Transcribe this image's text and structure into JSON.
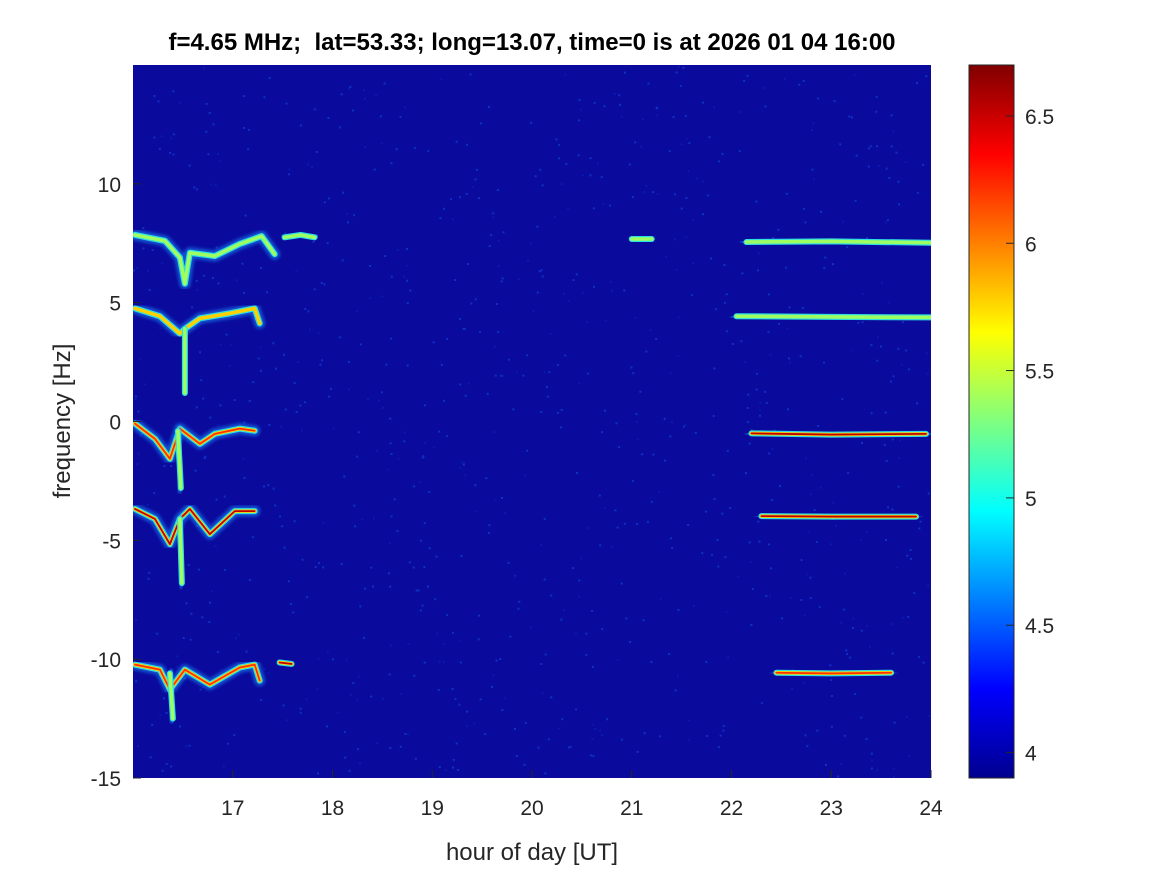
{
  "chart_data": {
    "type": "heatmap",
    "title": "f=4.65 MHz;  lat=53.33; long=13.07, time=0 is at 2026 01 04 16:00",
    "xlabel": "hour of day [UT]",
    "ylabel": "frequency [Hz]",
    "xlim": [
      16,
      24
    ],
    "ylim": [
      -15,
      15
    ],
    "xticks": [
      "17",
      "18",
      "19",
      "20",
      "21",
      "22",
      "23",
      "24"
    ],
    "xtick_values": [
      17,
      18,
      19,
      20,
      21,
      22,
      23,
      24
    ],
    "yticks": [
      "-15",
      "-10",
      "-5",
      "0",
      "5",
      "10"
    ],
    "ytick_values": [
      -15,
      -10,
      -5,
      0,
      5,
      10
    ],
    "colorbar": {
      "clim": [
        3.9,
        6.7
      ],
      "ticks": [
        "4",
        "4.5",
        "5",
        "5.5",
        "6",
        "6.5"
      ],
      "tick_values": [
        4,
        4.5,
        5,
        5.5,
        6,
        6.5
      ],
      "colormap": "jet"
    },
    "background_color": "#0a0a9c",
    "traces": [
      {
        "name": "trace-7hz-early",
        "points": [
          [
            16.02,
            7.85
          ],
          [
            16.32,
            7.6
          ],
          [
            16.47,
            6.9
          ],
          [
            16.52,
            5.8
          ],
          [
            16.57,
            7.1
          ],
          [
            16.82,
            6.96
          ],
          [
            17.07,
            7.47
          ],
          [
            17.29,
            7.8
          ],
          [
            17.42,
            7.04
          ]
        ],
        "intensity": 5.6
      },
      {
        "name": "trace-7hz-short",
        "points": [
          [
            17.52,
            7.75
          ],
          [
            17.68,
            7.85
          ],
          [
            17.82,
            7.75
          ]
        ],
        "intensity": 5.8
      },
      {
        "name": "trace-4hz-early",
        "points": [
          [
            16.02,
            4.76
          ],
          [
            16.27,
            4.43
          ],
          [
            16.47,
            3.7
          ],
          [
            16.52,
            3.9
          ],
          [
            16.67,
            4.34
          ],
          [
            16.97,
            4.55
          ],
          [
            17.22,
            4.76
          ],
          [
            17.27,
            4.13
          ]
        ],
        "intensity": 5.9
      },
      {
        "name": "trace-4hz-dip",
        "points": [
          [
            16.52,
            3.9
          ],
          [
            16.52,
            1.2
          ]
        ],
        "intensity": 4.8
      },
      {
        "name": "trace-0hz-early",
        "points": [
          [
            16.02,
            -0.09
          ],
          [
            16.22,
            -0.73
          ],
          [
            16.37,
            -1.57
          ],
          [
            16.47,
            -0.3
          ],
          [
            16.67,
            -0.94
          ],
          [
            16.82,
            -0.52
          ],
          [
            17.07,
            -0.3
          ],
          [
            17.22,
            -0.39
          ]
        ],
        "intensity": 6.4
      },
      {
        "name": "trace-0hz-dip",
        "points": [
          [
            16.45,
            -0.4
          ],
          [
            16.48,
            -2.8
          ]
        ],
        "intensity": 5.0
      },
      {
        "name": "trace-m4hz-early",
        "points": [
          [
            16.02,
            -3.68
          ],
          [
            16.22,
            -4.1
          ],
          [
            16.37,
            -5.16
          ],
          [
            16.47,
            -4.1
          ],
          [
            16.57,
            -3.68
          ],
          [
            16.77,
            -4.74
          ],
          [
            17.02,
            -3.77
          ],
          [
            17.22,
            -3.77
          ]
        ],
        "intensity": 6.6
      },
      {
        "name": "trace-m4hz-dip",
        "points": [
          [
            16.47,
            -4.1
          ],
          [
            16.49,
            -6.8
          ]
        ],
        "intensity": 5.0
      },
      {
        "name": "trace-m10hz-early",
        "points": [
          [
            16.02,
            -10.23
          ],
          [
            16.27,
            -10.44
          ],
          [
            16.37,
            -11.28
          ],
          [
            16.52,
            -10.44
          ],
          [
            16.77,
            -11.07
          ],
          [
            17.07,
            -10.35
          ],
          [
            17.22,
            -10.23
          ],
          [
            17.27,
            -10.9
          ]
        ],
        "intensity": 6.2
      },
      {
        "name": "trace-m10hz-dip",
        "points": [
          [
            16.37,
            -10.6
          ],
          [
            16.4,
            -12.5
          ]
        ],
        "intensity": 5.2
      },
      {
        "name": "trace-m10hz-short",
        "points": [
          [
            17.47,
            -10.14
          ],
          [
            17.59,
            -10.2
          ]
        ],
        "intensity": 6.5
      },
      {
        "name": "trace-7hz-21h",
        "points": [
          [
            21.0,
            7.68
          ],
          [
            21.2,
            7.68
          ]
        ],
        "intensity": 5.0
      },
      {
        "name": "trace-7hz-late",
        "points": [
          [
            22.15,
            7.55
          ],
          [
            23.0,
            7.58
          ],
          [
            24.0,
            7.52
          ]
        ],
        "intensity": 5.6
      },
      {
        "name": "trace-4hz-late",
        "points": [
          [
            22.05,
            4.43
          ],
          [
            23.0,
            4.4
          ],
          [
            24.0,
            4.38
          ]
        ],
        "intensity": 5.8
      },
      {
        "name": "trace-0hz-late",
        "points": [
          [
            22.2,
            -0.5
          ],
          [
            23.0,
            -0.55
          ],
          [
            23.95,
            -0.52
          ]
        ],
        "intensity": 6.5
      },
      {
        "name": "trace-m4hz-late",
        "points": [
          [
            22.3,
            -3.98
          ],
          [
            23.0,
            -4.0
          ],
          [
            23.85,
            -4.0
          ]
        ],
        "intensity": 6.7
      },
      {
        "name": "trace-m10hz-late",
        "points": [
          [
            22.45,
            -10.57
          ],
          [
            23.0,
            -10.6
          ],
          [
            23.6,
            -10.57
          ]
        ],
        "intensity": 6.3
      }
    ]
  }
}
